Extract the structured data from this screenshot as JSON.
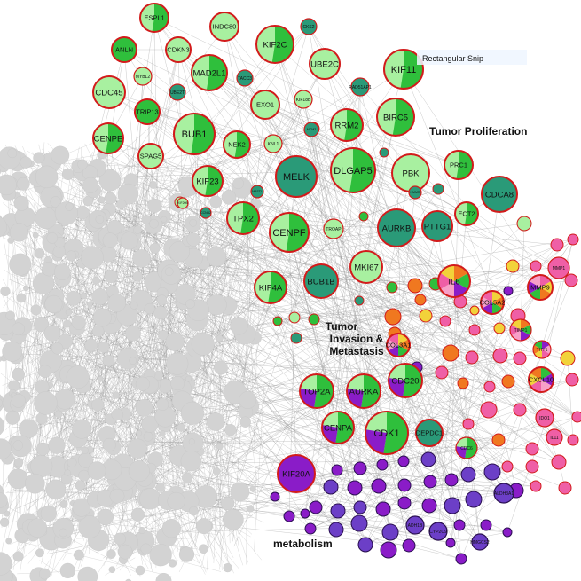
{
  "labels": {
    "proliferation": "Tumor Proliferation",
    "invasion_line1": "Tumor",
    "invasion_line2": "Invasion &",
    "invasion_line3": "Metastasis",
    "metabolism": "metabolism",
    "hint": "Rectangular Snip"
  },
  "colors": {
    "light_green": "#a8f0a0",
    "green": "#2fbf3c",
    "teal": "#2a9a78",
    "red_ring": "#d21b1b",
    "purple": "#8a1cc8",
    "violet": "#6c3fc7",
    "pink": "#ef5fa6",
    "orange": "#f07820",
    "yellow": "#f2d23a",
    "gray": "#d3d3d3",
    "edge": "#9a9a9a"
  },
  "nodes": [
    {
      "label": "ESPL1",
      "style": "mix"
    },
    {
      "label": "INDC80",
      "style": "light"
    },
    {
      "label": "CKS2",
      "style": "teal"
    },
    {
      "label": "ANLN",
      "style": "green"
    },
    {
      "label": "CDKN3",
      "style": "light"
    },
    {
      "label": "KIF2C",
      "style": "mix"
    },
    {
      "label": "UBE2C",
      "style": "light"
    },
    {
      "label": "KIF11",
      "style": "mix"
    },
    {
      "label": "MYBL2",
      "style": "light"
    },
    {
      "label": "MAD2L1",
      "style": "mix"
    },
    {
      "label": "CDC45",
      "style": "light"
    },
    {
      "label": "UBE2T",
      "style": "teal"
    },
    {
      "label": "TACC3",
      "style": "teal"
    },
    {
      "label": "RAD51AP1",
      "style": "teal"
    },
    {
      "label": "EXO1",
      "style": "light"
    },
    {
      "label": "KIF18B",
      "style": "light"
    },
    {
      "label": "TRIP13",
      "style": "green"
    },
    {
      "label": "BIRC5",
      "style": "mix"
    },
    {
      "label": "MCM2",
      "style": "teal"
    },
    {
      "label": "RRM2",
      "style": "mix"
    },
    {
      "label": "CENPE",
      "style": "mix"
    },
    {
      "label": "BUB1",
      "style": "mix"
    },
    {
      "label": "NEK2",
      "style": "mix"
    },
    {
      "label": "KNL1",
      "style": "light"
    },
    {
      "label": "SPAG5",
      "style": "light"
    },
    {
      "label": "MELK",
      "style": "teal"
    },
    {
      "label": "DLGAP5",
      "style": "mix"
    },
    {
      "label": "PBK",
      "style": "light"
    },
    {
      "label": "PRC1",
      "style": "mix"
    },
    {
      "label": "KIF23",
      "style": "mix"
    },
    {
      "label": "MASTL",
      "style": "teal"
    },
    {
      "label": "HMMR",
      "style": "teal"
    },
    {
      "label": "CDCA8",
      "style": "teal"
    },
    {
      "label": "KIF20B",
      "style": "light"
    },
    {
      "label": "CCNB2",
      "style": "teal"
    },
    {
      "label": "TPX2",
      "style": "mix"
    },
    {
      "label": "CENPF",
      "style": "mix"
    },
    {
      "label": "TROAP",
      "style": "light"
    },
    {
      "label": "AURKB",
      "style": "teal"
    },
    {
      "label": "PTTG1",
      "style": "teal"
    },
    {
      "label": "ECT2",
      "style": "mix"
    },
    {
      "label": "MKI67",
      "style": "light"
    },
    {
      "label": "KIF4A",
      "style": "mix"
    },
    {
      "label": "BUB1B",
      "style": "teal"
    },
    {
      "label": "IL6",
      "style": "multi"
    },
    {
      "label": "TOP2A",
      "style": "mix"
    },
    {
      "label": "AURKA",
      "style": "mix"
    },
    {
      "label": "CDC20",
      "style": "mix"
    },
    {
      "label": "CENPA",
      "style": "mix"
    },
    {
      "label": "CDK1",
      "style": "mix"
    },
    {
      "label": "DEPDC1",
      "style": "teal"
    },
    {
      "label": "CDC6",
      "style": "mix"
    },
    {
      "label": "KIF20A",
      "style": "purple"
    },
    {
      "label": "MMP1",
      "style": "pink"
    },
    {
      "label": "MMP9",
      "style": "multi"
    },
    {
      "label": "COL5A2",
      "style": "multi"
    },
    {
      "label": "TIMP1",
      "style": "multi"
    },
    {
      "label": "CXCL10",
      "style": "multi"
    },
    {
      "label": "THY1",
      "style": "multi"
    },
    {
      "label": "IDO1",
      "style": "pink"
    },
    {
      "label": "IL11",
      "style": "pink"
    },
    {
      "label": "COL3A1",
      "style": "multi"
    },
    {
      "label": "ALDH3A1",
      "style": "violet"
    },
    {
      "label": "ADH1B",
      "style": "violet"
    },
    {
      "label": "CYP2C9",
      "style": "violet"
    },
    {
      "label": "HMGCS2",
      "style": "violet"
    }
  ]
}
